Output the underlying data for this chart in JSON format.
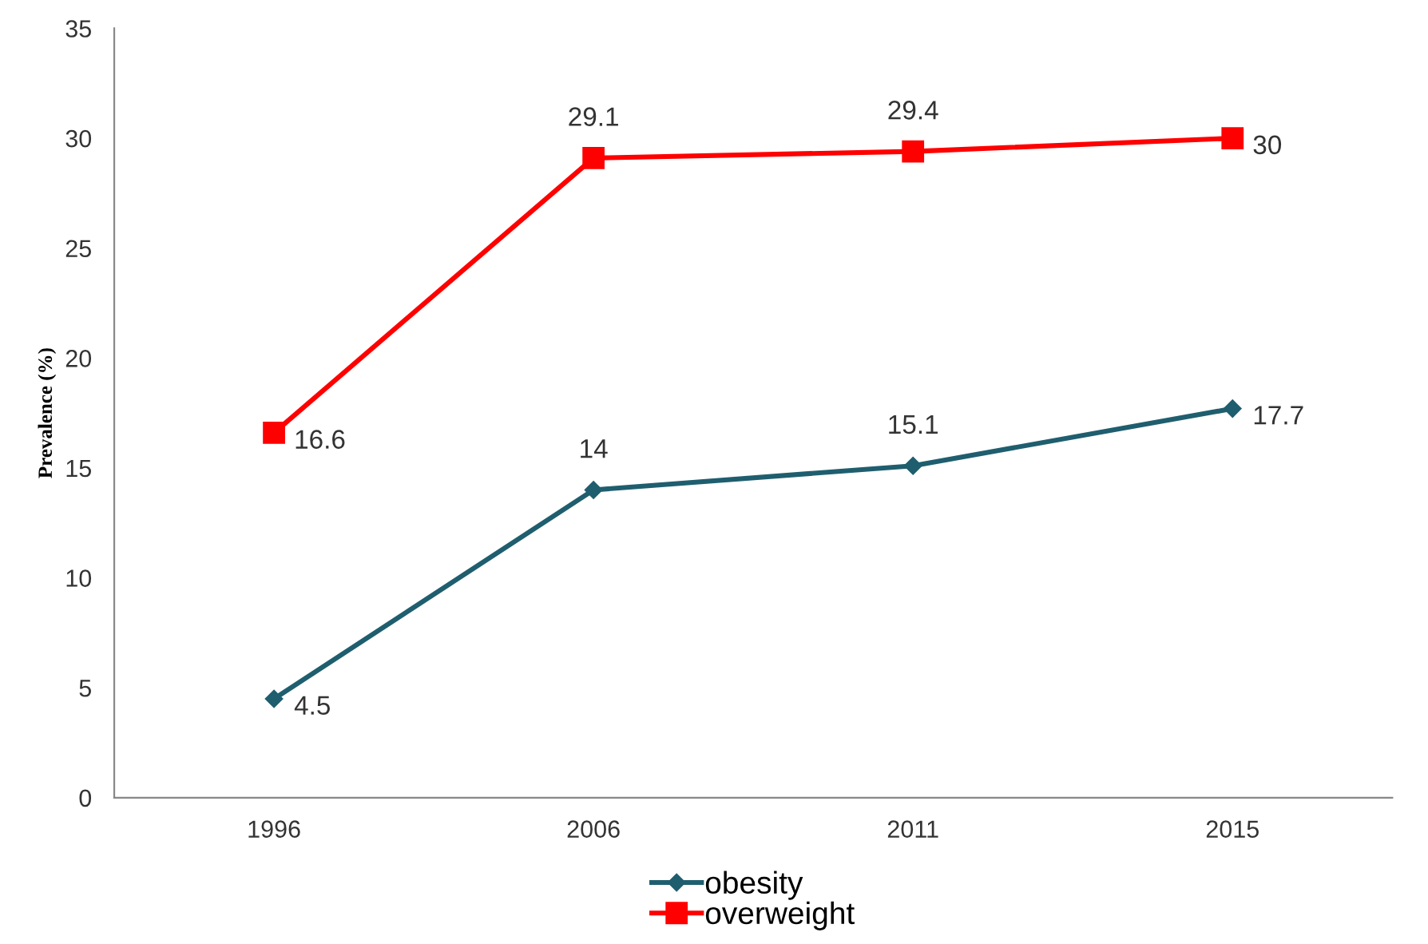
{
  "chart_data": {
    "type": "line",
    "ylabel": "Prevalence (%)",
    "categories": [
      "1996",
      "2006",
      "2011",
      "2015"
    ],
    "series": [
      {
        "name": "obesity",
        "color": "#1f5e6e",
        "marker": "diamond",
        "values": [
          4.5,
          14,
          15.1,
          17.7
        ]
      },
      {
        "name": "overweight",
        "color": "#ff0000",
        "marker": "square",
        "values": [
          16.6,
          29.1,
          29.4,
          30
        ]
      }
    ],
    "ylim": [
      0,
      35
    ],
    "yticks": [
      0,
      5,
      10,
      15,
      20,
      25,
      30,
      35
    ],
    "data_labels": true,
    "legend": "bottom",
    "grid": false,
    "line_style": "solid"
  }
}
